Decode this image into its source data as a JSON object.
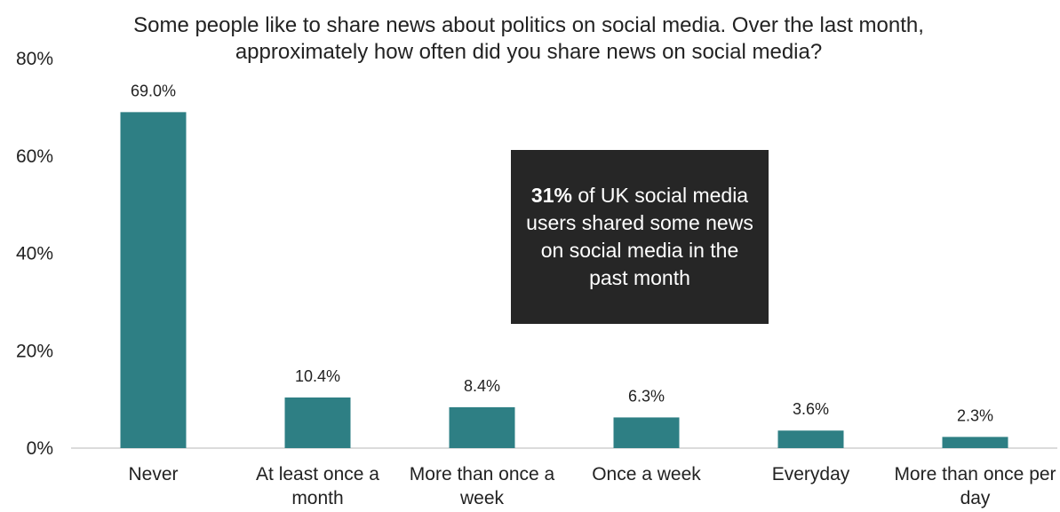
{
  "chart_data": {
    "type": "bar",
    "title": "Some people like to share news about politics on social media. Over the last month, approximately how often did you share news on social media?",
    "categories": [
      "Never",
      "At least once a month",
      "More than once a week",
      "Once a week",
      "Everyday",
      "More than once per day"
    ],
    "values": [
      69.0,
      10.4,
      8.4,
      6.3,
      3.6,
      2.3
    ],
    "data_labels": [
      "69.0%",
      "10.4%",
      "8.4%",
      "6.3%",
      "3.6%",
      "2.3%"
    ],
    "ylim": [
      0,
      80
    ],
    "yticks": [
      0,
      20,
      40,
      60,
      80
    ],
    "ytick_labels": [
      "0%",
      "20%",
      "40%",
      "60%",
      "80%"
    ],
    "xlabel": "",
    "ylabel": "",
    "grid": false,
    "bar_color": "#2e7f84",
    "annotation": {
      "bold": "31%",
      "text": " of UK social media users shared some news on social media in the past month"
    }
  }
}
